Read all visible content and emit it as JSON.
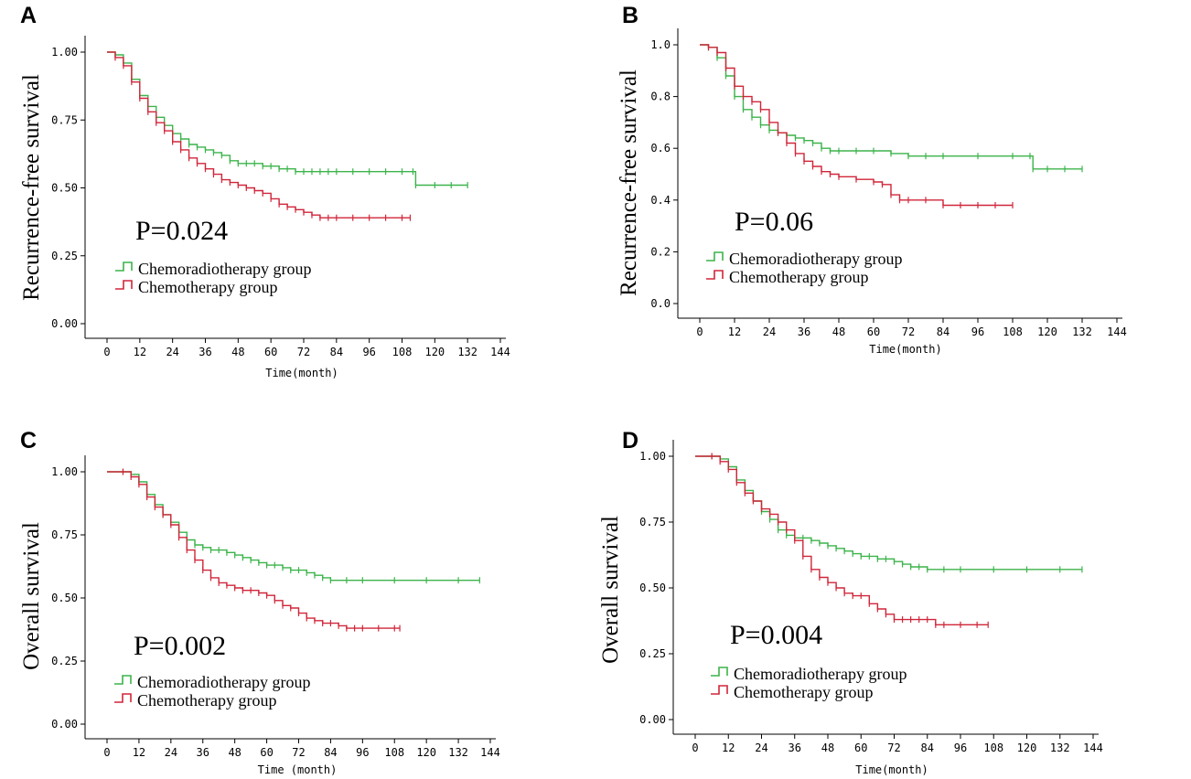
{
  "colors": {
    "chemoradiotherapy": "#3cb44b",
    "chemotherapy": "#d0263a"
  },
  "chart_data": [
    {
      "panel": "A",
      "type": "line",
      "title": "",
      "xlabel": "Time(month)",
      "ylabel": "Recurrence-free survival",
      "xlim": [
        0,
        144
      ],
      "ylim": [
        0,
        1
      ],
      "xticks": [
        "0",
        "12",
        "24",
        "36",
        "48",
        "60",
        "72",
        "84",
        "96",
        "108",
        "120",
        "132",
        "144"
      ],
      "yticks": [
        "0.00",
        "0.25",
        "0.50",
        "0.75",
        "1.00"
      ],
      "yvals": [
        0,
        0.25,
        0.5,
        0.75,
        1.0
      ],
      "annotation": "P=0.024",
      "legend": [
        "Chemoradiotherapy group",
        "Chemotherapy group"
      ],
      "series": [
        {
          "name": "Chemoradiotherapy group",
          "x": [
            0,
            3,
            6,
            9,
            12,
            15,
            18,
            21,
            24,
            27,
            30,
            33,
            36,
            39,
            42,
            45,
            48,
            51,
            54,
            57,
            60,
            63,
            66,
            69,
            72,
            75,
            78,
            81,
            84,
            90,
            96,
            102,
            108,
            112,
            113,
            120,
            126,
            132
          ],
          "y": [
            1.0,
            0.99,
            0.96,
            0.9,
            0.84,
            0.8,
            0.76,
            0.73,
            0.7,
            0.68,
            0.66,
            0.65,
            0.64,
            0.63,
            0.62,
            0.6,
            0.59,
            0.59,
            0.59,
            0.58,
            0.58,
            0.57,
            0.57,
            0.56,
            0.56,
            0.56,
            0.56,
            0.56,
            0.56,
            0.56,
            0.56,
            0.56,
            0.56,
            0.56,
            0.51,
            0.51,
            0.51,
            0.51
          ]
        },
        {
          "name": "Chemotherapy group",
          "x": [
            0,
            3,
            6,
            9,
            12,
            15,
            18,
            21,
            24,
            27,
            30,
            33,
            36,
            39,
            42,
            45,
            48,
            51,
            54,
            57,
            60,
            63,
            66,
            69,
            72,
            75,
            78,
            81,
            84,
            90,
            96,
            102,
            108,
            111
          ],
          "y": [
            1.0,
            0.98,
            0.95,
            0.89,
            0.83,
            0.78,
            0.74,
            0.71,
            0.67,
            0.64,
            0.61,
            0.59,
            0.57,
            0.55,
            0.53,
            0.52,
            0.51,
            0.5,
            0.49,
            0.48,
            0.46,
            0.44,
            0.43,
            0.42,
            0.41,
            0.4,
            0.39,
            0.39,
            0.39,
            0.39,
            0.39,
            0.39,
            0.39,
            0.39
          ]
        }
      ]
    },
    {
      "panel": "B",
      "type": "line",
      "title": "",
      "xlabel": "Time(month)",
      "ylabel": "Recurrence-free survival",
      "xlim": [
        0,
        144
      ],
      "ylim": [
        0,
        1
      ],
      "xticks": [
        "0",
        "12",
        "24",
        "36",
        "48",
        "60",
        "72",
        "84",
        "96",
        "108",
        "120",
        "132",
        "144"
      ],
      "yticks": [
        "0.0",
        "0.2",
        "0.4",
        "0.6",
        "0.8",
        "1.0"
      ],
      "yvals": [
        0,
        0.2,
        0.4,
        0.6,
        0.8,
        1.0
      ],
      "annotation": "P=0.06",
      "legend": [
        "Chemoradiotherapy group",
        "Chemotherapy group"
      ],
      "series": [
        {
          "name": "Chemoradiotherapy group",
          "x": [
            0,
            3,
            6,
            9,
            12,
            15,
            18,
            21,
            24,
            27,
            30,
            33,
            36,
            39,
            42,
            45,
            48,
            54,
            60,
            66,
            72,
            78,
            84,
            96,
            108,
            114,
            115,
            120,
            126,
            132
          ],
          "y": [
            1.0,
            0.99,
            0.95,
            0.88,
            0.8,
            0.75,
            0.72,
            0.69,
            0.67,
            0.66,
            0.65,
            0.64,
            0.63,
            0.62,
            0.6,
            0.59,
            0.59,
            0.59,
            0.59,
            0.58,
            0.57,
            0.57,
            0.57,
            0.57,
            0.57,
            0.57,
            0.52,
            0.52,
            0.52,
            0.52
          ]
        },
        {
          "name": "Chemotherapy group",
          "x": [
            0,
            3,
            6,
            9,
            12,
            15,
            18,
            21,
            24,
            27,
            30,
            33,
            36,
            39,
            42,
            45,
            48,
            54,
            60,
            63,
            66,
            69,
            72,
            78,
            84,
            90,
            96,
            102,
            108
          ],
          "y": [
            1.0,
            0.99,
            0.97,
            0.91,
            0.84,
            0.8,
            0.78,
            0.75,
            0.7,
            0.66,
            0.62,
            0.58,
            0.55,
            0.53,
            0.51,
            0.5,
            0.49,
            0.48,
            0.47,
            0.46,
            0.42,
            0.4,
            0.4,
            0.4,
            0.38,
            0.38,
            0.38,
            0.38,
            0.38
          ]
        }
      ]
    },
    {
      "panel": "C",
      "type": "line",
      "title": "",
      "xlabel": "Time (month)",
      "ylabel": "Overall survival",
      "xlim": [
        0,
        144
      ],
      "ylim": [
        0,
        1
      ],
      "xticks": [
        "0",
        "12",
        "24",
        "36",
        "48",
        "60",
        "72",
        "84",
        "96",
        "108",
        "120",
        "132",
        "144"
      ],
      "yticks": [
        "0.00",
        "0.25",
        "0.50",
        "0.75",
        "1.00"
      ],
      "yvals": [
        0,
        0.25,
        0.5,
        0.75,
        1.0
      ],
      "annotation": "P=0.002",
      "legend": [
        "Chemoradiotherapy group",
        "Chemotherapy group"
      ],
      "series": [
        {
          "name": "Chemoradiotherapy group",
          "x": [
            0,
            6,
            9,
            12,
            15,
            18,
            21,
            24,
            27,
            30,
            33,
            36,
            39,
            42,
            45,
            48,
            51,
            54,
            57,
            60,
            63,
            66,
            69,
            72,
            75,
            78,
            81,
            84,
            90,
            96,
            108,
            120,
            132,
            140
          ],
          "y": [
            1.0,
            1.0,
            0.99,
            0.96,
            0.91,
            0.87,
            0.83,
            0.8,
            0.76,
            0.73,
            0.71,
            0.7,
            0.69,
            0.69,
            0.68,
            0.67,
            0.66,
            0.65,
            0.64,
            0.63,
            0.63,
            0.62,
            0.61,
            0.61,
            0.6,
            0.59,
            0.58,
            0.57,
            0.57,
            0.57,
            0.57,
            0.57,
            0.57,
            0.57
          ]
        },
        {
          "name": "Chemotherapy group",
          "x": [
            0,
            6,
            9,
            12,
            15,
            18,
            21,
            24,
            27,
            30,
            33,
            36,
            39,
            42,
            45,
            48,
            51,
            54,
            57,
            60,
            63,
            66,
            69,
            72,
            75,
            78,
            81,
            84,
            87,
            90,
            93,
            96,
            102,
            108,
            110
          ],
          "y": [
            1.0,
            1.0,
            0.98,
            0.95,
            0.9,
            0.86,
            0.83,
            0.79,
            0.74,
            0.69,
            0.65,
            0.61,
            0.58,
            0.56,
            0.55,
            0.54,
            0.53,
            0.53,
            0.52,
            0.51,
            0.49,
            0.47,
            0.46,
            0.44,
            0.42,
            0.41,
            0.4,
            0.4,
            0.39,
            0.38,
            0.38,
            0.38,
            0.38,
            0.38,
            0.38
          ]
        }
      ]
    },
    {
      "panel": "D",
      "type": "line",
      "title": "",
      "xlabel": "Time(month)",
      "ylabel": "Overall survival",
      "xlim": [
        0,
        144
      ],
      "ylim": [
        0,
        1
      ],
      "xticks": [
        "0",
        "12",
        "24",
        "36",
        "48",
        "60",
        "72",
        "84",
        "96",
        "108",
        "120",
        "132",
        "144"
      ],
      "yticks": [
        "0.00",
        "0.25",
        "0.50",
        "0.75",
        "1.00"
      ],
      "yvals": [
        0,
        0.25,
        0.5,
        0.75,
        1.0
      ],
      "annotation": "P=0.004",
      "legend": [
        "Chemoradiotherapy group",
        "Chemotherapy group"
      ],
      "series": [
        {
          "name": "Chemoradiotherapy group",
          "x": [
            0,
            6,
            9,
            12,
            15,
            18,
            21,
            24,
            27,
            30,
            33,
            36,
            39,
            42,
            45,
            48,
            51,
            54,
            57,
            60,
            63,
            66,
            69,
            72,
            75,
            78,
            81,
            84,
            90,
            96,
            108,
            120,
            132,
            140
          ],
          "y": [
            1.0,
            1.0,
            0.99,
            0.96,
            0.91,
            0.87,
            0.83,
            0.79,
            0.76,
            0.72,
            0.7,
            0.69,
            0.69,
            0.68,
            0.67,
            0.66,
            0.65,
            0.64,
            0.63,
            0.62,
            0.62,
            0.61,
            0.61,
            0.6,
            0.59,
            0.58,
            0.58,
            0.57,
            0.57,
            0.57,
            0.57,
            0.57,
            0.57,
            0.57
          ]
        },
        {
          "name": "Chemotherapy group",
          "x": [
            0,
            6,
            9,
            12,
            15,
            18,
            21,
            24,
            27,
            30,
            33,
            36,
            39,
            42,
            45,
            48,
            51,
            54,
            57,
            60,
            63,
            66,
            69,
            72,
            75,
            78,
            81,
            84,
            87,
            90,
            96,
            102,
            106
          ],
          "y": [
            1.0,
            1.0,
            0.98,
            0.95,
            0.9,
            0.86,
            0.83,
            0.8,
            0.78,
            0.75,
            0.72,
            0.68,
            0.62,
            0.57,
            0.54,
            0.52,
            0.5,
            0.48,
            0.47,
            0.47,
            0.44,
            0.42,
            0.4,
            0.38,
            0.38,
            0.38,
            0.38,
            0.38,
            0.36,
            0.36,
            0.36,
            0.36,
            0.36
          ]
        }
      ]
    }
  ]
}
